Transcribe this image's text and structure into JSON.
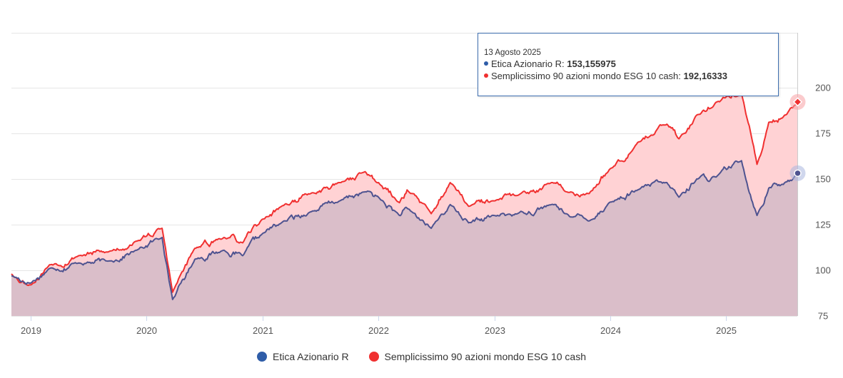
{
  "chart_data": {
    "type": "area",
    "title": "",
    "xlabel": "",
    "ylabel": "",
    "ylim": [
      75,
      230
    ],
    "y_ticks": [
      75,
      100,
      125,
      150,
      175,
      200
    ],
    "x_ticks": [
      "2019",
      "2020",
      "2021",
      "2022",
      "2023",
      "2024",
      "2025"
    ],
    "x_range": [
      "2018-11-01",
      "2025-08-13"
    ],
    "grid": true,
    "legend_position": "bottom",
    "series": [
      {
        "name": "Etica Azionario R",
        "color": "#4e5390",
        "fill": "#d7bcc8",
        "x": [
          "2018-11-01",
          "2019-01-01",
          "2019-03-01",
          "2019-06-01",
          "2019-09-01",
          "2019-12-01",
          "2020-02-19",
          "2020-03-23",
          "2020-06-01",
          "2020-09-01",
          "2020-10-30",
          "2020-12-31",
          "2021-03-01",
          "2021-06-01",
          "2021-09-01",
          "2021-11-20",
          "2022-01-01",
          "2022-03-08",
          "2022-04-01",
          "2022-06-16",
          "2022-08-15",
          "2022-10-12",
          "2022-12-31",
          "2023-03-15",
          "2023-06-30",
          "2023-08-15",
          "2023-10-27",
          "2023-12-29",
          "2024-03-28",
          "2024-06-28",
          "2024-08-05",
          "2024-09-30",
          "2024-11-30",
          "2025-02-18",
          "2025-04-08",
          "2025-05-15",
          "2025-06-30",
          "2025-08-13"
        ],
        "values": [
          97,
          93,
          101,
          104,
          105,
          111,
          118,
          84,
          106,
          111,
          108,
          120,
          126,
          132,
          138,
          143,
          140,
          130,
          134,
          123,
          136,
          126,
          130,
          131,
          136,
          131,
          127,
          137,
          144,
          148,
          140,
          150,
          151,
          160,
          130,
          145,
          147,
          153.155975
        ]
      },
      {
        "name": "Semplicissimo 90 azioni mondo ESG 10 cash",
        "color": "#f03030",
        "fill": "#ffd2d4",
        "x": [
          "2018-11-01",
          "2019-01-01",
          "2019-03-01",
          "2019-06-01",
          "2019-09-01",
          "2019-12-01",
          "2020-02-19",
          "2020-03-23",
          "2020-06-01",
          "2020-09-01",
          "2020-10-30",
          "2020-12-31",
          "2021-03-01",
          "2021-06-01",
          "2021-09-01",
          "2021-11-20",
          "2022-01-01",
          "2022-03-08",
          "2022-04-01",
          "2022-06-16",
          "2022-08-15",
          "2022-10-12",
          "2022-12-31",
          "2023-03-15",
          "2023-06-30",
          "2023-08-15",
          "2023-10-27",
          "2023-12-29",
          "2024-03-28",
          "2024-06-28",
          "2024-08-05",
          "2024-09-30",
          "2024-11-30",
          "2025-02-18",
          "2025-04-08",
          "2025-05-15",
          "2025-06-30",
          "2025-08-13"
        ],
        "values": [
          98,
          92,
          103,
          108,
          110,
          116,
          123,
          88,
          112,
          118,
          115,
          128,
          135,
          142,
          148,
          154,
          148,
          137,
          144,
          131,
          148,
          135,
          138,
          141,
          148,
          143,
          142,
          155,
          170,
          180,
          172,
          185,
          192,
          197,
          158,
          181,
          184,
          192.16333
        ]
      }
    ]
  },
  "tooltip": {
    "date": "13 Agosto 2025",
    "rows": [
      {
        "label": "Etica Azionario R: ",
        "value": "153,155975",
        "color": "#2f5da8"
      },
      {
        "label": "Semplicissimo 90 azioni mondo ESG 10 cash: ",
        "value": "192,16333",
        "color": "#f03030"
      }
    ]
  },
  "legend": {
    "items": [
      {
        "label": "Etica Azionario R",
        "color": "#2f5da8"
      },
      {
        "label": "Semplicissimo 90 azioni mondo ESG 10 cash",
        "color": "#f03030"
      }
    ]
  }
}
